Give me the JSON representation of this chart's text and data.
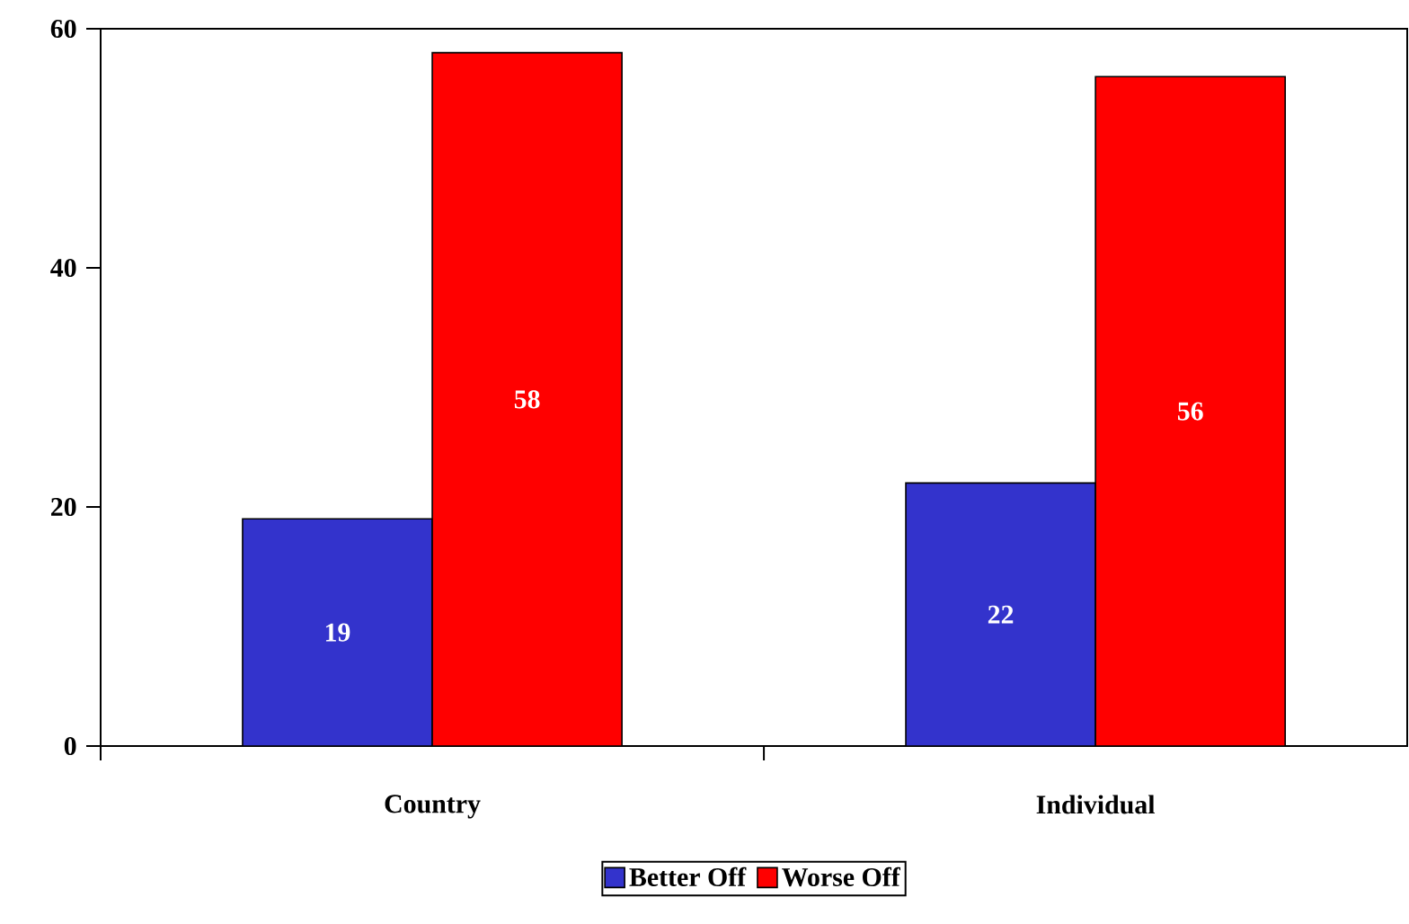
{
  "chart_data": {
    "type": "bar",
    "categories": [
      "Country",
      "Individual"
    ],
    "series": [
      {
        "name": "Better Off",
        "color": "#3333cc",
        "values": [
          19,
          22
        ]
      },
      {
        "name": "Worse Off",
        "color": "#ff0000",
        "values": [
          58,
          56
        ]
      }
    ],
    "ylim": [
      0,
      60
    ],
    "yticks": [
      0,
      20,
      40,
      60
    ],
    "data_labels": true,
    "legend": "bottom",
    "grid": false
  }
}
